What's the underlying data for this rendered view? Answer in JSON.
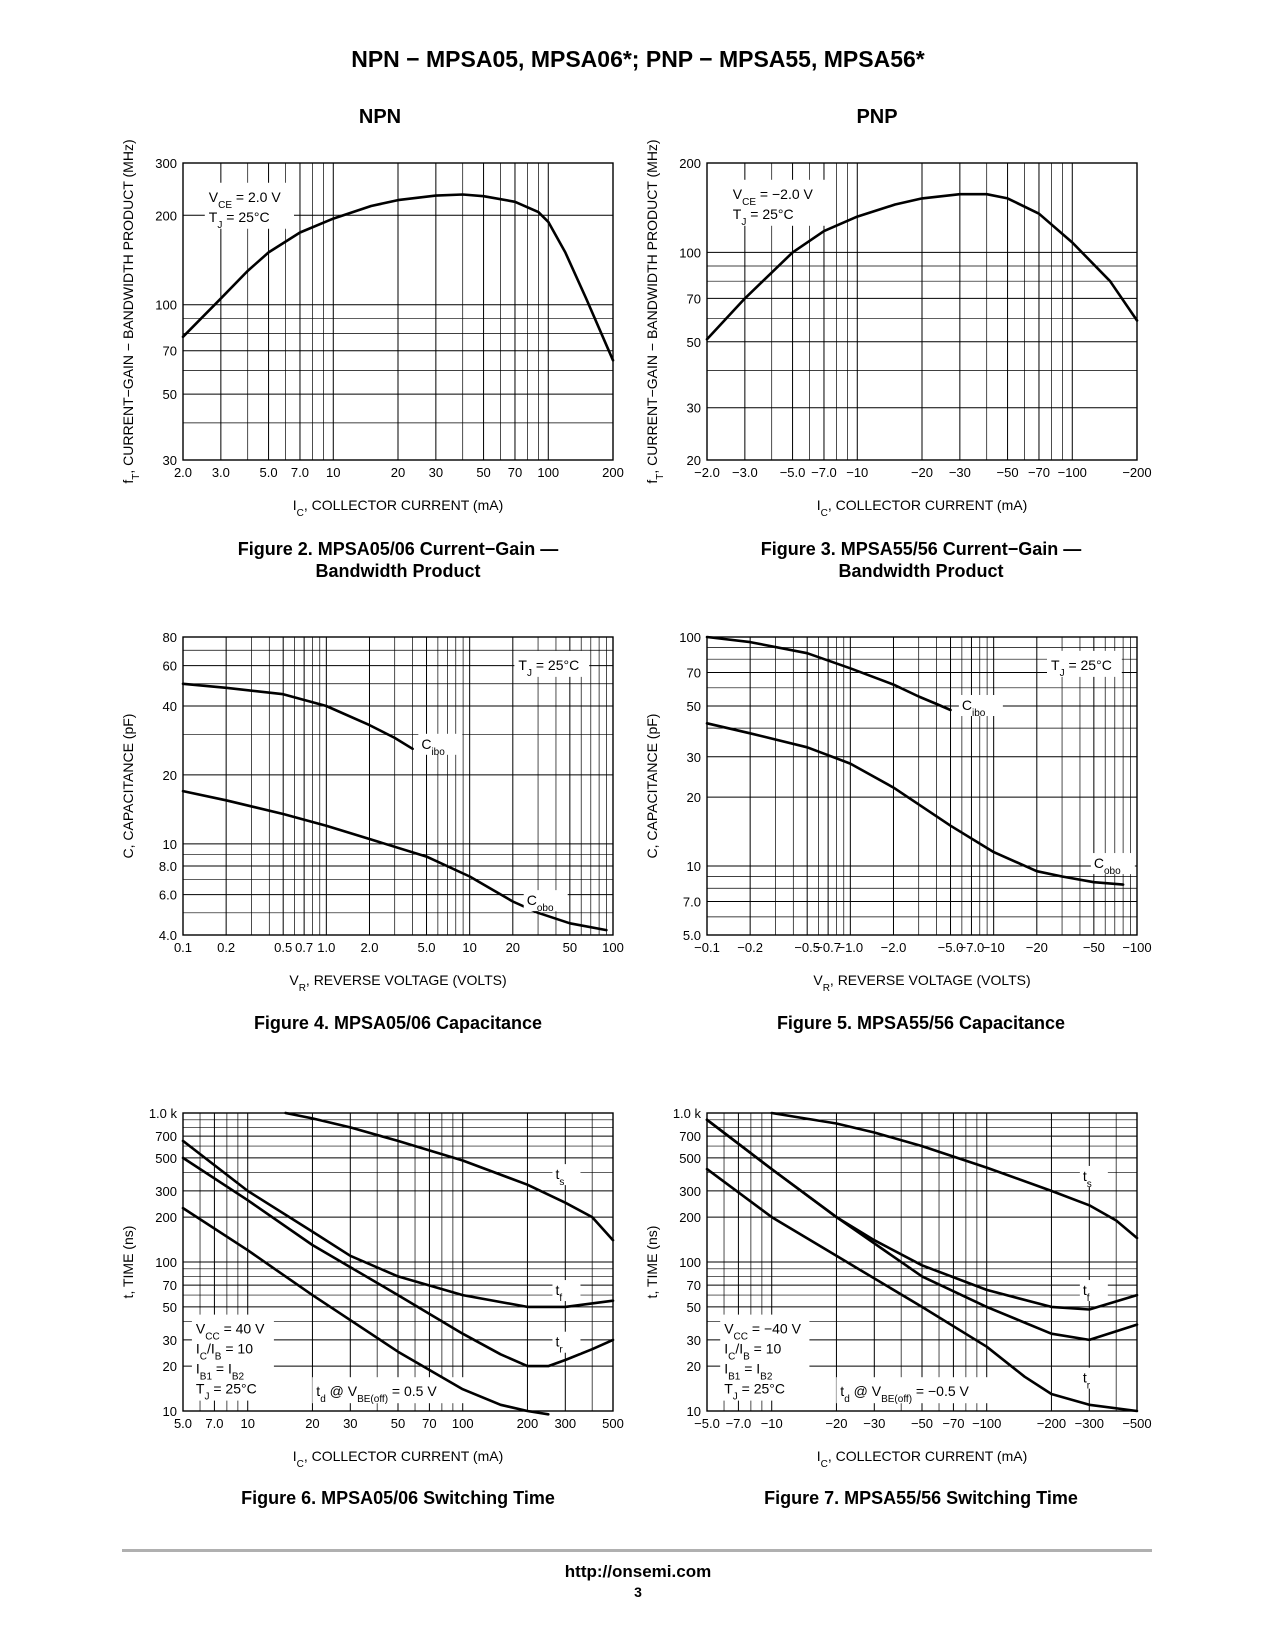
{
  "header": {
    "title": "NPN − MPSA05, MPSA06*; PNP − MPSA55, MPSA56*"
  },
  "columns": {
    "left": "NPN",
    "right": "PNP"
  },
  "footer": {
    "url": "http://onsemi.com",
    "page": "3"
  },
  "captions": {
    "fig2": [
      "Figure 2. MPSA05/06 Current−Gain —",
      "Bandwidth Product"
    ],
    "fig3": [
      "Figure 3. MPSA55/56 Current−Gain —",
      "Bandwidth Product"
    ],
    "fig4": [
      "Figure 4. MPSA05/06 Capacitance"
    ],
    "fig5": [
      "Figure 5. MPSA55/56 Capacitance"
    ],
    "fig6": [
      "Figure 6. MPSA05/06 Switching Time"
    ],
    "fig7": [
      "Figure 7. MPSA55/56 Switching Time"
    ]
  },
  "chart_data": [
    {
      "id": "fig2",
      "type": "line",
      "xscale": "log",
      "yscale": "log",
      "xlim": [
        2,
        200
      ],
      "ylim": [
        30,
        300
      ],
      "xticks": [
        2,
        3,
        5,
        7,
        10,
        20,
        30,
        50,
        70,
        100,
        200
      ],
      "xtick_labels": [
        "2.0",
        "3.0",
        "5.0",
        "7.0",
        "10",
        "20",
        "30",
        "50",
        "70",
        "100",
        "200"
      ],
      "yticks": [
        30,
        50,
        70,
        100,
        200,
        300
      ],
      "ytick_labels": [
        "30",
        "50",
        "70",
        "100",
        "200",
        "300"
      ],
      "xlabel": "I_C, COLLECTOR CURRENT (mA)",
      "ylabel": "f_T, CURRENT−GAIN − BANDWIDTH PRODUCT (MHz)",
      "annotations": [
        [
          "V_CE = 2.0 V",
          "T_J = 25°C"
        ]
      ],
      "series": [
        {
          "name": "fT",
          "x": [
            2,
            3,
            4,
            5,
            7,
            10,
            15,
            20,
            30,
            40,
            50,
            70,
            90,
            100,
            120,
            150,
            200
          ],
          "y": [
            78,
            105,
            130,
            150,
            175,
            195,
            215,
            225,
            233,
            235,
            232,
            222,
            205,
            190,
            150,
            105,
            65
          ]
        }
      ]
    },
    {
      "id": "fig3",
      "type": "line",
      "xscale": "log",
      "yscale": "log",
      "xlim": [
        2,
        200
      ],
      "ylim": [
        20,
        200
      ],
      "xticks": [
        2,
        3,
        5,
        7,
        10,
        20,
        30,
        50,
        70,
        100,
        200
      ],
      "xtick_labels": [
        "−2.0",
        "−3.0",
        "−5.0",
        "−7.0",
        "−10",
        "−20",
        "−30",
        "−50",
        "−70",
        "−100",
        "−200"
      ],
      "yticks": [
        20,
        30,
        50,
        70,
        100,
        200
      ],
      "ytick_labels": [
        "20",
        "30",
        "50",
        "70",
        "100",
        "200"
      ],
      "xlabel": "I_C, COLLECTOR CURRENT (mA)",
      "ylabel": "f_T, CURRENT−GAIN − BANDWIDTH PRODUCT (MHz)",
      "annotations": [
        [
          "V_CE = −2.0 V",
          "T_J = 25°C"
        ]
      ],
      "series": [
        {
          "name": "fT",
          "x": [
            2,
            3,
            5,
            7,
            10,
            15,
            20,
            30,
            40,
            50,
            70,
            100,
            150,
            200
          ],
          "y": [
            51,
            70,
            100,
            118,
            132,
            145,
            152,
            157,
            157,
            152,
            135,
            108,
            80,
            59
          ]
        }
      ]
    },
    {
      "id": "fig4",
      "type": "line",
      "xscale": "log",
      "yscale": "log",
      "xlim": [
        0.1,
        100
      ],
      "ylim": [
        4,
        80
      ],
      "xticks": [
        0.1,
        0.2,
        0.5,
        0.7,
        1,
        2,
        5,
        10,
        20,
        50,
        100
      ],
      "xtick_labels": [
        "0.1",
        "0.2",
        "0.5",
        "0.7",
        "1.0",
        "2.0",
        "5.0",
        "10",
        "20",
        "50",
        "100"
      ],
      "yticks": [
        4,
        6,
        8,
        10,
        20,
        40,
        60,
        80
      ],
      "ytick_labels": [
        "4.0",
        "6.0",
        "8.0",
        "10",
        "20",
        "40",
        "60",
        "80"
      ],
      "xlabel": "V_R, REVERSE VOLTAGE (VOLTS)",
      "ylabel": "C, CAPACITANCE (pF)",
      "annotations": [
        [
          "T_J = 25°C"
        ]
      ],
      "series": [
        {
          "name": "C_ibo",
          "x": [
            0.1,
            0.2,
            0.5,
            1,
            2,
            3,
            4
          ],
          "y": [
            50,
            48,
            45,
            40,
            33,
            29,
            26
          ]
        },
        {
          "name": "C_obo",
          "x": [
            0.1,
            0.2,
            0.5,
            1,
            2,
            5,
            10,
            20,
            30,
            50,
            90
          ],
          "y": [
            17,
            15.5,
            13.5,
            12,
            10.5,
            8.8,
            7.2,
            5.6,
            5,
            4.5,
            4.2
          ]
        }
      ]
    },
    {
      "id": "fig5",
      "type": "line",
      "xscale": "log",
      "yscale": "log",
      "xlim": [
        0.1,
        100
      ],
      "ylim": [
        5,
        100
      ],
      "xticks": [
        0.1,
        0.2,
        0.5,
        0.7,
        1,
        2,
        5,
        7,
        10,
        20,
        50,
        100
      ],
      "xtick_labels": [
        "−0.1",
        "−0.2",
        "−0.5",
        "−0.7",
        "−1.0",
        "−2.0",
        "−5.0",
        "−7.0",
        "−10",
        "−20",
        "−50",
        "−100"
      ],
      "yticks": [
        5,
        7,
        10,
        20,
        30,
        50,
        70,
        100
      ],
      "ytick_labels": [
        "5.0",
        "7.0",
        "10",
        "20",
        "30",
        "50",
        "70",
        "100"
      ],
      "xlabel": "V_R, REVERSE VOLTAGE (VOLTS)",
      "ylabel": "C, CAPACITANCE (pF)",
      "annotations": [
        [
          "T_J = 25°C"
        ]
      ],
      "series": [
        {
          "name": "C_ibo",
          "x": [
            0.1,
            0.2,
            0.5,
            1,
            2,
            3,
            4,
            5
          ],
          "y": [
            100,
            95,
            85,
            73,
            62,
            55,
            51,
            48
          ]
        },
        {
          "name": "C_obo",
          "x": [
            0.1,
            0.2,
            0.5,
            1,
            2,
            5,
            10,
            20,
            30,
            50,
            80
          ],
          "y": [
            42,
            38,
            33,
            28,
            22,
            15,
            11.5,
            9.5,
            9,
            8.5,
            8.3
          ]
        }
      ]
    },
    {
      "id": "fig6",
      "type": "line",
      "xscale": "log",
      "yscale": "log",
      "xlim": [
        5,
        500
      ],
      "ylim": [
        10,
        1000
      ],
      "xticks": [
        5,
        7,
        10,
        20,
        30,
        50,
        70,
        100,
        200,
        300,
        500
      ],
      "xtick_labels": [
        "5.0",
        "7.0",
        "10",
        "20",
        "30",
        "50",
        "70",
        "100",
        "200",
        "300",
        "500"
      ],
      "yticks": [
        10,
        20,
        30,
        50,
        70,
        100,
        200,
        300,
        500,
        700,
        1000
      ],
      "ytick_labels": [
        "10",
        "20",
        "30",
        "50",
        "70",
        "100",
        "200",
        "300",
        "500",
        "700",
        "1.0 k"
      ],
      "xlabel": "I_C, COLLECTOR CURRENT (mA)",
      "ylabel": "t, TIME (ns)",
      "annotations": [
        [
          "V_CC = 40 V",
          "I_C/I_B = 10",
          "I_B1 = I_B2",
          "T_J = 25°C"
        ],
        [
          "t_d @ V_BE(off) = 0.5 V"
        ]
      ],
      "series": [
        {
          "name": "t_s",
          "x": [
            15,
            20,
            30,
            50,
            100,
            200,
            300,
            400,
            500
          ],
          "y": [
            1000,
            920,
            800,
            650,
            480,
            330,
            250,
            200,
            140
          ]
        },
        {
          "name": "t_f",
          "x": [
            5,
            10,
            20,
            30,
            50,
            100,
            200,
            300,
            500
          ],
          "y": [
            650,
            300,
            160,
            110,
            80,
            60,
            50,
            50,
            55
          ]
        },
        {
          "name": "t_r",
          "x": [
            5,
            10,
            20,
            50,
            100,
            150,
            200,
            250,
            300,
            400,
            500
          ],
          "y": [
            500,
            260,
            130,
            60,
            33,
            24,
            20,
            20,
            22,
            26,
            30
          ]
        },
        {
          "name": "t_d",
          "x": [
            5,
            10,
            20,
            50,
            100,
            150,
            200,
            250
          ],
          "y": [
            230,
            120,
            60,
            25,
            14,
            11,
            10,
            9.5
          ]
        }
      ]
    },
    {
      "id": "fig7",
      "type": "line",
      "xscale": "log",
      "yscale": "log",
      "xlim": [
        5,
        500
      ],
      "ylim": [
        10,
        1000
      ],
      "xticks": [
        5,
        7,
        10,
        20,
        30,
        50,
        70,
        100,
        200,
        300,
        500
      ],
      "xtick_labels": [
        "−5.0",
        "−7.0",
        "−10",
        "−20",
        "−30",
        "−50",
        "−70",
        "−100",
        "−200",
        "−300",
        "−500"
      ],
      "yticks": [
        10,
        20,
        30,
        50,
        70,
        100,
        200,
        300,
        500,
        700,
        1000
      ],
      "ytick_labels": [
        "10",
        "20",
        "30",
        "50",
        "70",
        "100",
        "200",
        "300",
        "500",
        "700",
        "1.0 k"
      ],
      "xlabel": "I_C, COLLECTOR CURRENT (mA)",
      "ylabel": "t, TIME (ns)",
      "annotations": [
        [
          "V_CC = −40 V",
          "I_C/I_B = 10",
          "I_B1 = I_B2",
          "T_J = 25°C"
        ],
        [
          "t_d @ V_BE(off) = −0.5 V"
        ]
      ],
      "series": [
        {
          "name": "t_s",
          "x": [
            10,
            20,
            30,
            50,
            100,
            200,
            300,
            400,
            500
          ],
          "y": [
            1000,
            850,
            740,
            600,
            430,
            300,
            240,
            190,
            145
          ]
        },
        {
          "name": "t_f",
          "x": [
            5,
            10,
            20,
            30,
            50,
            100,
            200,
            300,
            500
          ],
          "y": [
            900,
            420,
            200,
            140,
            95,
            65,
            50,
            48,
            60
          ]
        },
        {
          "name": "t_r",
          "x": [
            5,
            10,
            20,
            50,
            100,
            200,
            300,
            500
          ],
          "y": [
            900,
            420,
            200,
            80,
            50,
            33,
            30,
            38
          ]
        },
        {
          "name": "t_d",
          "x": [
            5,
            10,
            20,
            50,
            100,
            150,
            200,
            300,
            500
          ],
          "y": [
            420,
            200,
            110,
            50,
            27,
            17,
            13,
            11,
            10
          ]
        }
      ]
    }
  ]
}
